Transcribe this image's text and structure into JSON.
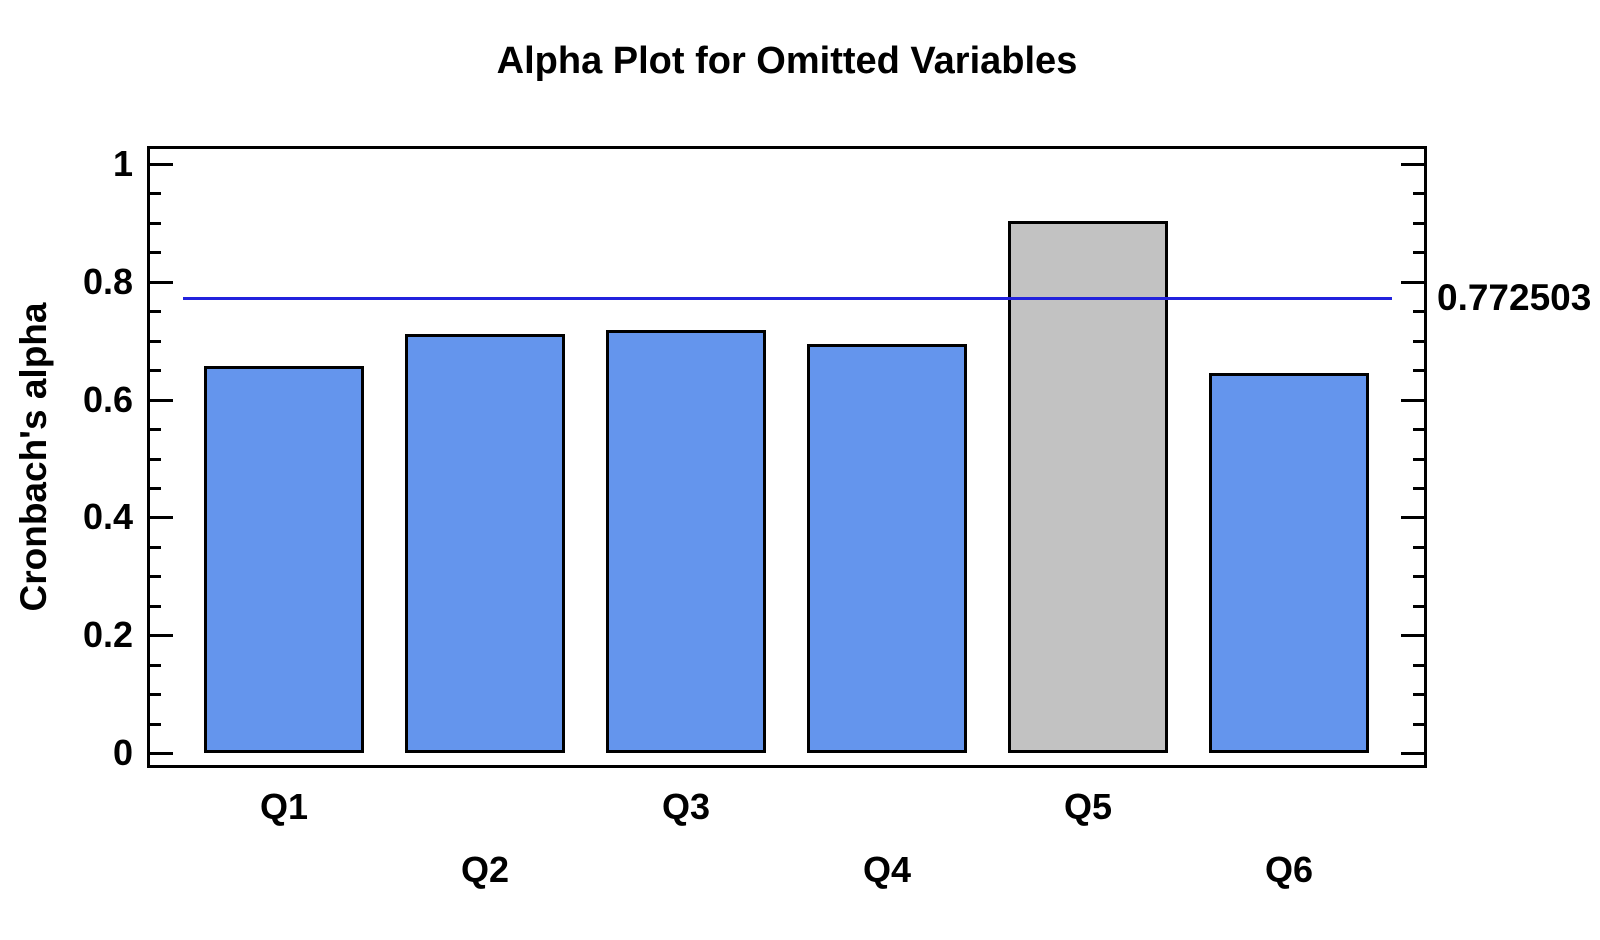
{
  "chart_data": {
    "type": "bar",
    "title": "Alpha Plot for Omitted Variables",
    "xlabel": "",
    "ylabel": "Cronbach's alpha",
    "categories": [
      "Q1",
      "Q2",
      "Q3",
      "Q4",
      "Q5",
      "Q6"
    ],
    "values": [
      0.657,
      0.711,
      0.718,
      0.694,
      0.903,
      0.645
    ],
    "bar_colors": [
      "#6495ED",
      "#6495ED",
      "#6495ED",
      "#6495ED",
      "#C2C2C2",
      "#6495ED"
    ],
    "highlighted_index": 4,
    "ylim": [
      0,
      1
    ],
    "ytick_values": [
      0,
      0.2,
      0.4,
      0.6,
      0.8,
      1
    ],
    "ytick_labels": [
      "0",
      "0.2",
      "0.4",
      "0.6",
      "0.8",
      "1"
    ],
    "yminor_step": 0.05,
    "grid": "off",
    "legend": "none",
    "reference_line": {
      "value": 0.772503,
      "label": "0.772503",
      "color": "#2222DD"
    },
    "colors": {
      "bar_fill": "#6495ED",
      "omitted_bar_fill": "#C2C2C2",
      "bar_border": "#000000",
      "axis": "#000000",
      "text": "#000000",
      "background": "#FFFFFF"
    }
  }
}
